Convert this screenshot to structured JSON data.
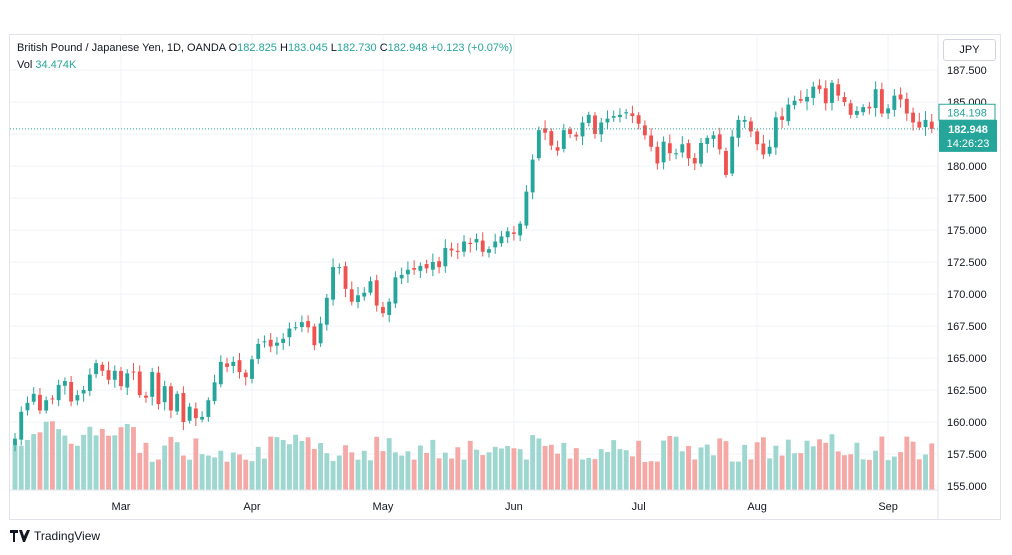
{
  "legend": {
    "symbol": "British Pound / Japanese Yen, 1D, OANDA",
    "o_label": "O",
    "o_value": "182.825",
    "h_label": "H",
    "h_value": "183.045",
    "l_label": "L",
    "l_value": "182.730",
    "c_label": "C",
    "c_value": "182.948",
    "change": "+0.123 (+0.07%)",
    "vol_label": "Vol",
    "vol_value": "34.474K"
  },
  "currency_button": "JPY",
  "branding": "TradingView",
  "colors": {
    "up": "#26a69a",
    "down": "#ef5350",
    "vol_up": "#9ed6d0",
    "vol_down": "#f5a9a7",
    "grid": "#f0f3fa",
    "last_price_tag": "#26a69a"
  },
  "price_axis": {
    "ticks": [
      "187.500",
      "185.000",
      "182.500",
      "180.000",
      "177.500",
      "175.000",
      "172.500",
      "170.000",
      "167.500",
      "165.000",
      "162.500",
      "160.000",
      "157.500",
      "155.000"
    ],
    "tag_prev": "184.198",
    "tag_last": "182.948",
    "tag_countdown": "14:26:23"
  },
  "time_axis": {
    "labels": [
      "Mar",
      "Apr",
      "May",
      "Jun",
      "Jul",
      "Aug",
      "Sep"
    ]
  },
  "chart_data": {
    "type": "candlestick",
    "symbol": "GBPJPY",
    "interval": "1D",
    "ylim": [
      155.0,
      188.0
    ],
    "month_positions": {
      "Mar": 17,
      "Apr": 38,
      "May": 59,
      "Jun": 80,
      "Jul": 100,
      "Aug": 119,
      "Sep": 140
    },
    "close": [
      158.7,
      160.8,
      161.5,
      162.2,
      160.9,
      161.7,
      161.8,
      162.9,
      163.2,
      161.6,
      162.1,
      162.5,
      163.7,
      164.6,
      164.0,
      163.3,
      164.0,
      162.8,
      163.8,
      163.9,
      162.1,
      161.9,
      163.9,
      161.4,
      162.8,
      160.9,
      162.2,
      160.0,
      161.2,
      160.3,
      160.4,
      161.7,
      163.1,
      164.7,
      164.3,
      164.7,
      163.9,
      163.5,
      164.9,
      166.1,
      166.3,
      165.9,
      166.2,
      166.5,
      167.3,
      167.4,
      167.8,
      167.4,
      166.0,
      167.7,
      169.7,
      172.1,
      172.1,
      170.4,
      169.4,
      169.9,
      170.1,
      171.0,
      169.1,
      168.5,
      169.4,
      171.3,
      171.5,
      171.9,
      171.9,
      172.2,
      172.0,
      172.5,
      172.1,
      173.6,
      173.4,
      173.3,
      174.1,
      173.9,
      174.3,
      173.3,
      173.5,
      174.1,
      174.5,
      174.9,
      174.7,
      175.5,
      178.0,
      180.5,
      182.8,
      182.6,
      181.6,
      181.2,
      182.8,
      182.5,
      182.3,
      183.4,
      184.0,
      182.5,
      183.4,
      183.7,
      183.9,
      184.0,
      184.2,
      183.9,
      183.3,
      182.4,
      181.5,
      180.2,
      181.9,
      181.0,
      181.0,
      181.7,
      180.6,
      180.2,
      181.8,
      182.2,
      182.4,
      181.3,
      179.3,
      182.3,
      183.6,
      183.6,
      182.7,
      181.7,
      180.9,
      181.5,
      183.8,
      183.6,
      184.8,
      185.1,
      185.1,
      185.4,
      186.2,
      186.0,
      184.9,
      186.5,
      185.5,
      185.0,
      184.0,
      184.3,
      184.6,
      184.5,
      186.0,
      184.1,
      184.5,
      185.5,
      185.2,
      184.1,
      183.4,
      183.0,
      183.6,
      182.9
    ]
  }
}
